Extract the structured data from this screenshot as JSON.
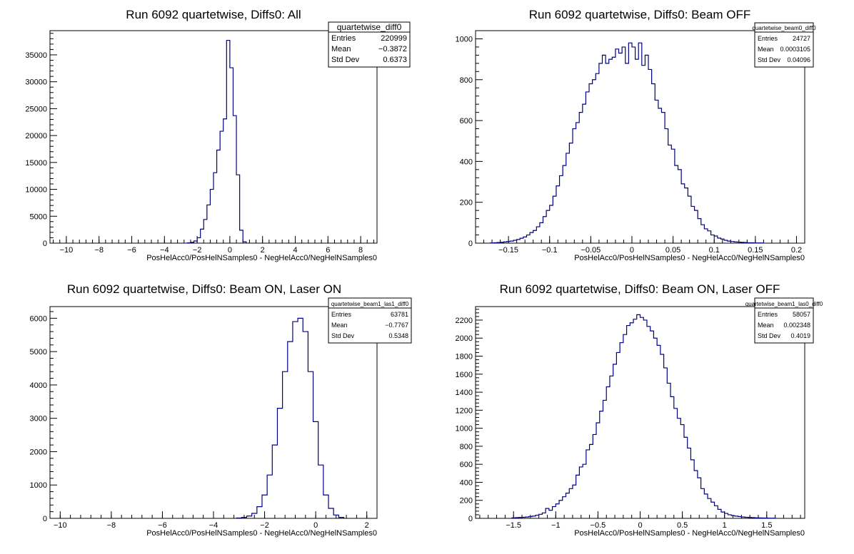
{
  "chart_data": [
    {
      "type": "histogram",
      "title": "Run 6092 quartetwise, Diffs0: All",
      "xlabel": "PosHelAcc0/PosHelNSamples0 - NegHelAcc0/NegHelNSamples0",
      "ylabel": "",
      "xlim": [
        -11,
        9
      ],
      "ylim": [
        0,
        39500
      ],
      "xticks": [
        -10,
        -8,
        -6,
        -4,
        -2,
        0,
        2,
        4,
        6,
        8
      ],
      "yticks": [
        0,
        5000,
        10000,
        15000,
        20000,
        25000,
        30000,
        35000
      ],
      "bin_width": 0.2,
      "series": [
        {
          "x": [
            -2.5,
            -2.3,
            -2.1,
            -1.9,
            -1.7,
            -1.5,
            -1.3,
            -1.1,
            -0.9,
            -0.7,
            -0.5,
            -0.3,
            -0.1,
            0.1,
            0.3,
            0.5,
            0.7,
            0.9
          ],
          "values": [
            50,
            150,
            400,
            1000,
            2600,
            4400,
            7100,
            10000,
            13100,
            17300,
            20800,
            23100,
            37700,
            32600,
            23700,
            12700,
            2400,
            250
          ]
        }
      ],
      "stats": {
        "name": "quartetwise_diff0",
        "rows": [
          {
            "label": "Entries",
            "value": "220999"
          },
          {
            "label": "Mean",
            "value": "−0.3872"
          },
          {
            "label": "Std Dev",
            "value": "0.6373"
          }
        ]
      }
    },
    {
      "type": "histogram",
      "title": "Run 6092 quartetwise, Diffs0: Beam OFF",
      "xlabel": "PosHelAcc0/PosHelNSamples0 - NegHelAcc0/NegHelNSamples0",
      "ylabel": "",
      "xlim": [
        -0.19,
        0.21
      ],
      "ylim": [
        0,
        1040
      ],
      "xticks": [
        -0.15,
        -0.1,
        -0.05,
        0,
        0.05,
        0.1,
        0.15,
        0.2
      ],
      "xtick_labels": [
        "−0.15",
        "−0.1",
        "−0.05",
        "0",
        "0.05",
        "0.1",
        "0.15",
        "0.2"
      ],
      "yticks": [
        0,
        200,
        400,
        600,
        800,
        1000
      ],
      "bin_width": 0.004,
      "series": [
        {
          "x": [
            -0.17,
            -0.166,
            -0.162,
            -0.158,
            -0.154,
            -0.15,
            -0.146,
            -0.142,
            -0.138,
            -0.134,
            -0.13,
            -0.126,
            -0.122,
            -0.118,
            -0.114,
            -0.11,
            -0.106,
            -0.102,
            -0.098,
            -0.094,
            -0.09,
            -0.086,
            -0.082,
            -0.078,
            -0.074,
            -0.07,
            -0.066,
            -0.062,
            -0.058,
            -0.054,
            -0.05,
            -0.046,
            -0.042,
            -0.038,
            -0.034,
            -0.03,
            -0.026,
            -0.022,
            -0.018,
            -0.014,
            -0.01,
            -0.006,
            -0.002,
            0.002,
            0.006,
            0.01,
            0.014,
            0.018,
            0.022,
            0.026,
            0.03,
            0.034,
            0.038,
            0.042,
            0.046,
            0.05,
            0.054,
            0.058,
            0.062,
            0.066,
            0.07,
            0.074,
            0.078,
            0.082,
            0.086,
            0.09,
            0.094,
            0.098,
            0.102,
            0.106,
            0.11,
            0.114,
            0.118,
            0.122,
            0.126,
            0.13,
            0.134,
            0.138,
            0.142,
            0.146,
            0.15,
            0.154,
            0.158
          ],
          "values": [
            1,
            2,
            3,
            4,
            6,
            8,
            10,
            14,
            18,
            24,
            30,
            40,
            52,
            62,
            80,
            100,
            130,
            160,
            185,
            230,
            280,
            330,
            380,
            440,
            490,
            560,
            590,
            640,
            680,
            740,
            780,
            800,
            830,
            880,
            920,
            880,
            900,
            910,
            950,
            930,
            960,
            880,
            980,
            960,
            900,
            980,
            870,
            920,
            850,
            780,
            700,
            660,
            640,
            560,
            480,
            460,
            380,
            360,
            290,
            270,
            230,
            180,
            160,
            120,
            90,
            70,
            60,
            40,
            35,
            25,
            20,
            14,
            10,
            8,
            6,
            5,
            4,
            3,
            2,
            2,
            1,
            1,
            1
          ]
        }
      ],
      "stats": {
        "name": "quartetwise_beam0_diff0",
        "rows": [
          {
            "label": "Entries",
            "value": "24727"
          },
          {
            "label": "Mean",
            "value": "0.0003105"
          },
          {
            "label": "Std Dev",
            "value": "0.04096"
          }
        ]
      }
    },
    {
      "type": "histogram",
      "title": "Run 6092 quartetwise, Diffs0: Beam ON, Laser ON",
      "xlabel": "PosHelAcc0/PosHelNSamples0 - NegHelAcc0/NegHelNSamples0",
      "ylabel": "",
      "xlim": [
        -10.4,
        2.4
      ],
      "ylim": [
        0,
        6350
      ],
      "xticks": [
        -10,
        -8,
        -6,
        -4,
        -2,
        0,
        2
      ],
      "yticks": [
        0,
        1000,
        2000,
        3000,
        4000,
        5000,
        6000
      ],
      "bin_width": 0.2,
      "series": [
        {
          "x": [
            -3.0,
            -2.8,
            -2.6,
            -2.4,
            -2.2,
            -2.0,
            -1.8,
            -1.6,
            -1.4,
            -1.2,
            -1.0,
            -0.8,
            -0.6,
            -0.4,
            -0.2,
            0.0,
            0.2,
            0.4,
            0.6,
            0.8,
            1.0
          ],
          "values": [
            10,
            30,
            70,
            150,
            350,
            700,
            1300,
            2200,
            3300,
            4400,
            5300,
            5900,
            6000,
            5600,
            4400,
            2900,
            1600,
            700,
            300,
            100,
            30
          ]
        }
      ],
      "stats": {
        "name": "quartetwise_beam1_las1_diff0",
        "rows": [
          {
            "label": "Entries",
            "value": "63781"
          },
          {
            "label": "Mean",
            "value": "−0.7767"
          },
          {
            "label": "Std Dev",
            "value": "0.5348"
          }
        ]
      }
    },
    {
      "type": "histogram",
      "title": "Run 6092 quartetwise, Diffs0: Beam ON, Laser OFF",
      "xlabel": "PosHelAcc0/PosHelNSamples0 - NegHelAcc0/NegHelNSamples0",
      "ylabel": "",
      "xlim": [
        -1.95,
        1.95
      ],
      "ylim": [
        0,
        2350
      ],
      "xticks": [
        -1.5,
        -1,
        -0.5,
        0,
        0.5,
        1,
        1.5
      ],
      "xtick_labels": [
        "−1.5",
        "−1",
        "−0.5",
        "0",
        "0.5",
        "1",
        "1.5"
      ],
      "yticks": [
        0,
        200,
        400,
        600,
        800,
        1000,
        1200,
        1400,
        1600,
        1800,
        2000,
        2200
      ],
      "bin_width": 0.04,
      "series": [
        {
          "x": [
            -1.5,
            -1.46,
            -1.42,
            -1.38,
            -1.34,
            -1.3,
            -1.26,
            -1.22,
            -1.18,
            -1.14,
            -1.1,
            -1.06,
            -1.02,
            -0.98,
            -0.94,
            -0.9,
            -0.86,
            -0.82,
            -0.78,
            -0.74,
            -0.7,
            -0.66,
            -0.62,
            -0.58,
            -0.54,
            -0.5,
            -0.46,
            -0.42,
            -0.38,
            -0.34,
            -0.3,
            -0.26,
            -0.22,
            -0.18,
            -0.14,
            -0.1,
            -0.06,
            -0.02,
            0.02,
            0.06,
            0.1,
            0.14,
            0.18,
            0.22,
            0.26,
            0.3,
            0.34,
            0.38,
            0.42,
            0.46,
            0.5,
            0.54,
            0.58,
            0.62,
            0.66,
            0.7,
            0.74,
            0.78,
            0.82,
            0.86,
            0.9,
            0.94,
            0.98,
            1.02,
            1.06,
            1.1,
            1.14,
            1.18,
            1.22,
            1.26,
            1.3,
            1.34,
            1.38,
            1.42,
            1.46,
            1.5,
            1.54,
            1.58
          ],
          "values": [
            5,
            8,
            10,
            12,
            15,
            20,
            25,
            35,
            45,
            60,
            110,
            90,
            130,
            160,
            200,
            240,
            280,
            330,
            370,
            480,
            570,
            600,
            760,
            820,
            930,
            1060,
            1190,
            1310,
            1460,
            1580,
            1710,
            1840,
            1950,
            2040,
            2140,
            2170,
            2210,
            2260,
            2230,
            2200,
            2130,
            2080,
            2000,
            1920,
            1820,
            1670,
            1500,
            1350,
            1220,
            1110,
            1040,
            900,
            780,
            650,
            530,
            450,
            330,
            270,
            220,
            180,
            140,
            100,
            70,
            55,
            40,
            30,
            25,
            20,
            15,
            12,
            10,
            8,
            6,
            5,
            4,
            3,
            2,
            2
          ]
        }
      ],
      "stats": {
        "name": "quartetwise_beam1_las0_diff0",
        "rows": [
          {
            "label": "Entries",
            "value": "58057"
          },
          {
            "label": "Mean",
            "value": "0.002348"
          },
          {
            "label": "Std Dev",
            "value": "0.4019"
          }
        ]
      }
    }
  ],
  "colors": {
    "line": "#000080",
    "axis": "#000000",
    "background": "#ffffff"
  }
}
